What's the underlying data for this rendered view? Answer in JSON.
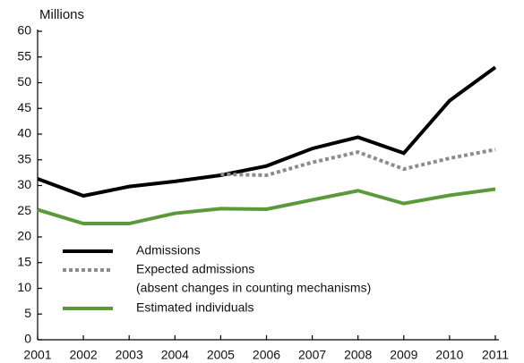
{
  "chart_data": {
    "type": "line",
    "y_label": "Millions",
    "x": [
      2001,
      2002,
      2003,
      2004,
      2005,
      2006,
      2007,
      2008,
      2009,
      2010,
      2011
    ],
    "xlim": [
      2001,
      2011
    ],
    "xticks": [
      2001,
      2002,
      2003,
      2004,
      2005,
      2006,
      2007,
      2008,
      2009,
      2010,
      2011
    ],
    "ylim": [
      0,
      60
    ],
    "yticks": [
      0,
      5,
      10,
      15,
      20,
      25,
      30,
      35,
      40,
      45,
      50,
      55,
      60
    ],
    "grid": false,
    "legend": "lower-left",
    "series": [
      {
        "name": "Admissions",
        "color": "#000000",
        "dash": "solid",
        "values": [
          31.3,
          28,
          29.8,
          30.8,
          32,
          33.8,
          37.2,
          39.4,
          36.3,
          46.5,
          53
        ]
      },
      {
        "name": "Expected admissions",
        "name_note": "(absent changes in counting mechanisms)",
        "color": "#8c8c8c",
        "dash": "dotted",
        "values": [
          null,
          null,
          null,
          null,
          32.2,
          32,
          34.5,
          36.5,
          33.2,
          35.3,
          37
        ]
      },
      {
        "name": "Estimated individuals",
        "color": "#5a9a3a",
        "dash": "solid",
        "values": [
          25.3,
          22.6,
          22.6,
          24.6,
          25.5,
          25.4,
          27.2,
          29,
          26.5,
          28.1,
          29.3
        ]
      }
    ]
  }
}
